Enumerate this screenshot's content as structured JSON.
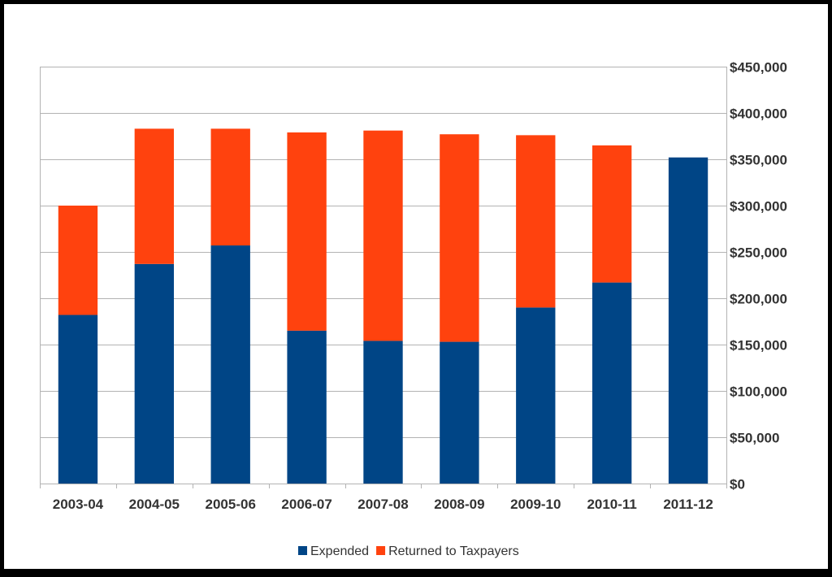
{
  "chart_data": {
    "type": "bar",
    "stacked": true,
    "categories": [
      "2003-04",
      "2004-05",
      "2005-06",
      "2006-07",
      "2007-08",
      "2008-09",
      "2009-10",
      "2010-11",
      "2011-12"
    ],
    "series": [
      {
        "name": "Expended",
        "color": "#004586",
        "values": [
          182000,
          237000,
          257000,
          165000,
          154000,
          153000,
          190000,
          217000,
          352000
        ]
      },
      {
        "name": "Returned to Taxpayers",
        "color": "#ff420e",
        "values": [
          118000,
          146000,
          126000,
          214000,
          227000,
          224000,
          186000,
          148000,
          0
        ]
      }
    ],
    "ylim": [
      0,
      450000
    ],
    "yticks": [
      0,
      50000,
      100000,
      150000,
      200000,
      250000,
      300000,
      350000,
      400000,
      450000
    ],
    "ytick_labels": [
      "$0",
      "$50,000",
      "$100,000",
      "$150,000",
      "$200,000",
      "$250,000",
      "$300,000",
      "$350,000",
      "$400,000",
      "$450,000"
    ],
    "yaxis_position": "right",
    "grid": true,
    "legend_position": "bottom",
    "title": "",
    "xlabel": "",
    "ylabel": ""
  }
}
